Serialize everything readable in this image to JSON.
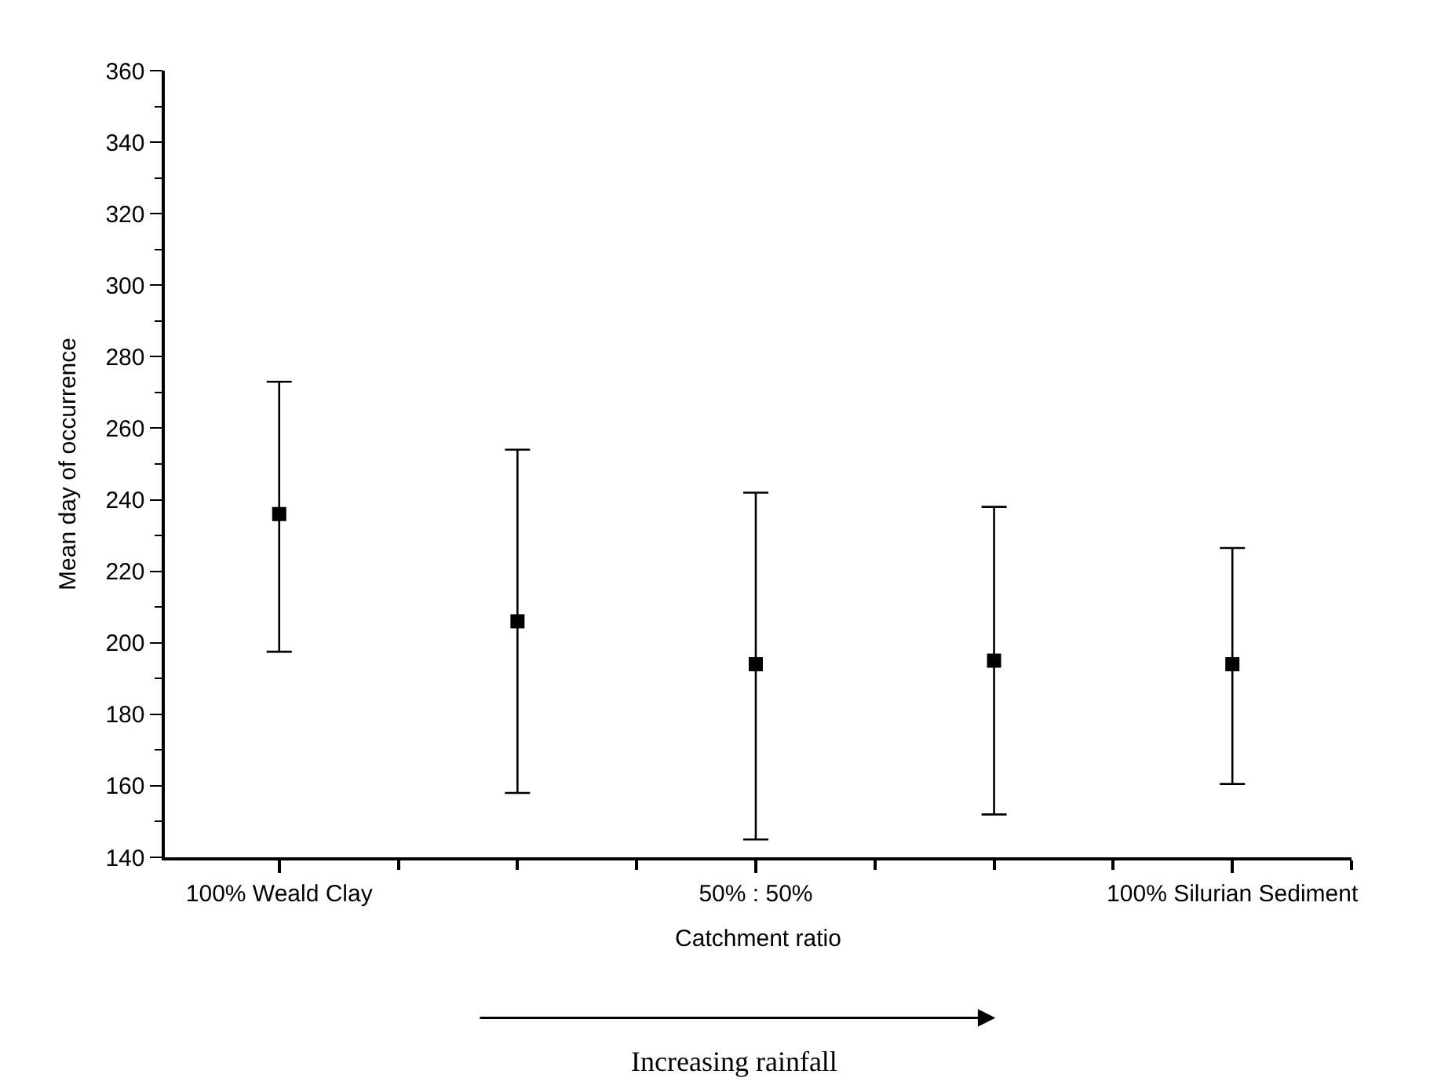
{
  "chart_data": {
    "type": "scatter",
    "xlabel": "Catchment ratio",
    "ylabel": "Mean day of occurrence",
    "categories": [
      "100% Weald Clay",
      null,
      "50% : 50%",
      null,
      "100% Silurian Sediment"
    ],
    "series": [
      {
        "color": "#000000",
        "values": [
          236,
          206,
          194,
          195,
          194
        ],
        "errors": [
          [
            197.5,
            273
          ],
          [
            158,
            254
          ],
          [
            145,
            242
          ],
          [
            152,
            238
          ],
          [
            160.5,
            226.5
          ]
        ]
      }
    ],
    "marker": "square",
    "ylim": [
      140,
      360
    ],
    "yticks": [
      140,
      160,
      180,
      200,
      220,
      240,
      260,
      280,
      300,
      320,
      340,
      360
    ],
    "annotations": [
      "Increasing rainfall"
    ]
  }
}
